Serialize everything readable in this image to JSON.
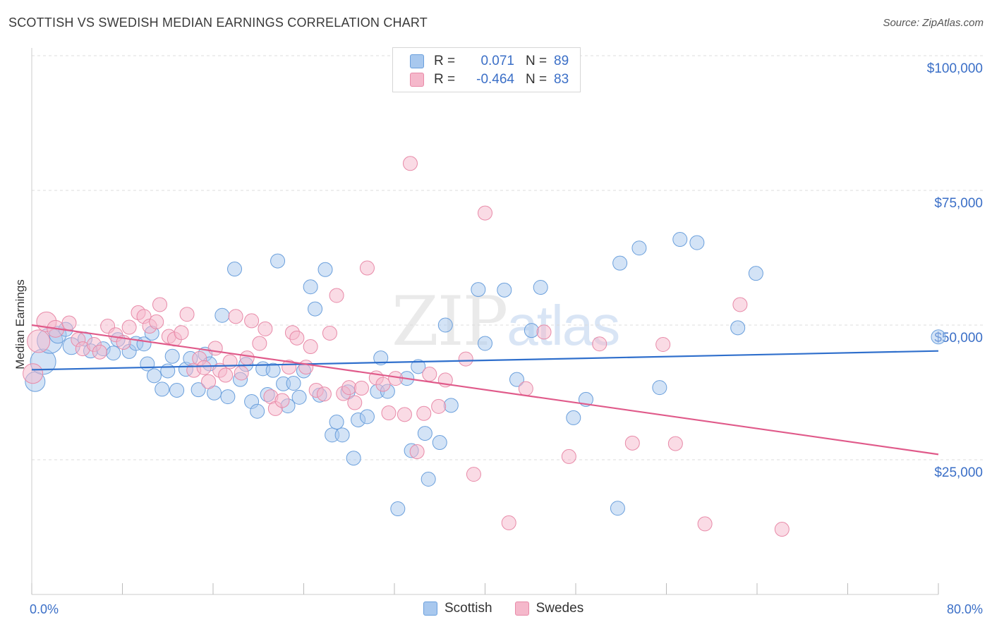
{
  "header": {
    "title": "SCOTTISH VS SWEDISH MEDIAN EARNINGS CORRELATION CHART",
    "source": "Source: ZipAtlas.com"
  },
  "legend": {
    "rows": [
      {
        "r_label": "R =",
        "r_value": "0.071",
        "n_label": "N =",
        "n_value": "89",
        "color": "#a8c8ee"
      },
      {
        "r_label": "R =",
        "r_value": "-0.464",
        "n_label": "N =",
        "n_value": "83",
        "color": "#f5b8cb"
      }
    ]
  },
  "bottom_legend": [
    {
      "label": "Scottish",
      "color": "#a8c8ee"
    },
    {
      "label": "Swedes",
      "color": "#f5b8cb"
    }
  ],
  "watermark": {
    "zip": "ZIP",
    "atlas": "atlas"
  },
  "chart_data": {
    "type": "scatter",
    "title": "SCOTTISH VS SWEDISH MEDIAN EARNINGS CORRELATION CHART",
    "xlabel": "",
    "ylabel": "Median Earnings",
    "xlim": [
      0,
      80
    ],
    "ylim": [
      0,
      102500
    ],
    "x_tick_labels": [
      "0.0%",
      "80.0%"
    ],
    "y_ticks": [
      25000,
      50000,
      75000,
      100000
    ],
    "y_tick_labels": [
      "$25,000",
      "$50,000",
      "$75,000",
      "$100,000"
    ],
    "grid": true,
    "legend_position": "top-center",
    "series": [
      {
        "name": "Scottish",
        "color": "#a8c8ee",
        "stroke": "#6a9fdc",
        "trend": {
          "x": [
            0,
            80
          ],
          "y": [
            41700,
            45200
          ],
          "color": "#2f6fcc"
        },
        "points": [
          [
            0.3,
            39500,
            14
          ],
          [
            1.0,
            43200,
            18
          ],
          [
            1.6,
            47100,
            18
          ],
          [
            2.3,
            48200,
            12
          ],
          [
            3.0,
            49200,
            10
          ],
          [
            3.5,
            46100,
            12
          ],
          [
            4.7,
            47400,
            10
          ],
          [
            5.2,
            45200,
            10
          ],
          [
            6.3,
            45600,
            10
          ],
          [
            7.2,
            44800,
            10
          ],
          [
            7.6,
            47300,
            10
          ],
          [
            8.6,
            45100,
            10
          ],
          [
            9.2,
            46600,
            10
          ],
          [
            9.9,
            46500,
            10
          ],
          [
            10.2,
            42800,
            10
          ],
          [
            10.6,
            48500,
            10
          ],
          [
            10.8,
            40600,
            10
          ],
          [
            11.5,
            38100,
            10
          ],
          [
            12.0,
            41500,
            10
          ],
          [
            12.4,
            44200,
            10
          ],
          [
            12.8,
            37900,
            10
          ],
          [
            13.6,
            41800,
            10
          ],
          [
            14.0,
            43800,
            10
          ],
          [
            14.7,
            38000,
            10
          ],
          [
            15.3,
            44600,
            10
          ],
          [
            15.7,
            42800,
            10
          ],
          [
            16.1,
            37400,
            10
          ],
          [
            16.8,
            51800,
            10
          ],
          [
            17.3,
            36700,
            10
          ],
          [
            17.9,
            60400,
            10
          ],
          [
            18.4,
            39900,
            10
          ],
          [
            18.9,
            42700,
            10
          ],
          [
            19.4,
            35800,
            10
          ],
          [
            19.9,
            34000,
            10
          ],
          [
            20.4,
            41900,
            10
          ],
          [
            20.8,
            37100,
            10
          ],
          [
            21.3,
            41600,
            10
          ],
          [
            21.7,
            61900,
            10
          ],
          [
            22.2,
            39100,
            10
          ],
          [
            22.6,
            35000,
            10
          ],
          [
            23.1,
            39200,
            10
          ],
          [
            23.6,
            36600,
            10
          ],
          [
            24.0,
            41500,
            10
          ],
          [
            24.6,
            57100,
            10
          ],
          [
            25.0,
            53000,
            10
          ],
          [
            25.4,
            37000,
            10
          ],
          [
            25.9,
            60300,
            10
          ],
          [
            26.5,
            29600,
            10
          ],
          [
            26.9,
            32000,
            10
          ],
          [
            27.4,
            29600,
            10
          ],
          [
            27.9,
            37600,
            10
          ],
          [
            28.4,
            25300,
            10
          ],
          [
            28.8,
            32400,
            10
          ],
          [
            29.6,
            33000,
            10
          ],
          [
            30.5,
            37700,
            10
          ],
          [
            30.8,
            43900,
            10
          ],
          [
            31.4,
            37700,
            10
          ],
          [
            32.3,
            15900,
            10
          ],
          [
            33.1,
            40100,
            10
          ],
          [
            33.5,
            26700,
            10
          ],
          [
            34.1,
            42300,
            10
          ],
          [
            34.7,
            29900,
            10
          ],
          [
            35.0,
            21400,
            10
          ],
          [
            36.0,
            28200,
            10
          ],
          [
            36.5,
            50000,
            10
          ],
          [
            37.0,
            35100,
            10
          ],
          [
            39.4,
            56600,
            10
          ],
          [
            40.0,
            46600,
            10
          ],
          [
            41.7,
            56500,
            10
          ],
          [
            42.8,
            39900,
            10
          ],
          [
            44.1,
            49000,
            10
          ],
          [
            44.9,
            57000,
            10
          ],
          [
            47.8,
            32800,
            10
          ],
          [
            48.9,
            36200,
            10
          ],
          [
            51.7,
            16000,
            10
          ],
          [
            51.9,
            61500,
            10
          ],
          [
            53.6,
            64300,
            10
          ],
          [
            55.4,
            38400,
            10
          ],
          [
            57.2,
            65900,
            10
          ],
          [
            58.7,
            65300,
            10
          ],
          [
            62.3,
            49500,
            10
          ],
          [
            63.9,
            59600,
            10
          ],
          [
            80.0,
            47800,
            10
          ]
        ]
      },
      {
        "name": "Swedes",
        "color": "#f5b8cb",
        "stroke": "#e88aa8",
        "trend": {
          "x": [
            0,
            80
          ],
          "y": [
            50000,
            26000
          ],
          "color": "#e05a8a"
        },
        "points": [
          [
            0.1,
            41000,
            14
          ],
          [
            0.6,
            47000,
            16
          ],
          [
            1.3,
            50600,
            14
          ],
          [
            2.1,
            49300,
            12
          ],
          [
            3.3,
            50400,
            10
          ],
          [
            4.1,
            47300,
            10
          ],
          [
            4.5,
            45600,
            10
          ],
          [
            5.5,
            46400,
            10
          ],
          [
            6.0,
            45000,
            10
          ],
          [
            6.7,
            49800,
            10
          ],
          [
            7.4,
            48200,
            10
          ],
          [
            8.1,
            46800,
            10
          ],
          [
            8.6,
            49600,
            10
          ],
          [
            9.4,
            52300,
            10
          ],
          [
            9.9,
            51600,
            10
          ],
          [
            10.4,
            49800,
            10
          ],
          [
            11.0,
            50600,
            10
          ],
          [
            11.3,
            53800,
            10
          ],
          [
            12.1,
            47900,
            10
          ],
          [
            12.6,
            47400,
            10
          ],
          [
            13.2,
            48600,
            10
          ],
          [
            13.7,
            52000,
            10
          ],
          [
            14.3,
            41600,
            10
          ],
          [
            14.8,
            43800,
            10
          ],
          [
            15.2,
            42100,
            10
          ],
          [
            15.6,
            39500,
            10
          ],
          [
            16.2,
            45700,
            10
          ],
          [
            16.6,
            41600,
            10
          ],
          [
            17.1,
            40700,
            10
          ],
          [
            17.5,
            43200,
            10
          ],
          [
            18.0,
            51600,
            10
          ],
          [
            18.5,
            41100,
            10
          ],
          [
            19.0,
            43900,
            10
          ],
          [
            19.4,
            50800,
            10
          ],
          [
            20.1,
            46600,
            10
          ],
          [
            20.6,
            49300,
            10
          ],
          [
            21.1,
            36700,
            10
          ],
          [
            21.5,
            34500,
            10
          ],
          [
            22.1,
            36000,
            10
          ],
          [
            22.7,
            42200,
            10
          ],
          [
            23.0,
            48600,
            10
          ],
          [
            23.4,
            47600,
            10
          ],
          [
            24.2,
            42200,
            10
          ],
          [
            24.6,
            46000,
            10
          ],
          [
            25.1,
            37900,
            10
          ],
          [
            25.8,
            37200,
            10
          ],
          [
            26.3,
            48500,
            10
          ],
          [
            26.9,
            55500,
            10
          ],
          [
            27.5,
            37300,
            10
          ],
          [
            28.0,
            38400,
            10
          ],
          [
            28.5,
            35600,
            10
          ],
          [
            29.1,
            38300,
            10
          ],
          [
            29.6,
            60600,
            10
          ],
          [
            30.4,
            40200,
            10
          ],
          [
            31.0,
            39000,
            10
          ],
          [
            31.5,
            33700,
            10
          ],
          [
            32.1,
            40100,
            10
          ],
          [
            32.9,
            33400,
            10
          ],
          [
            33.4,
            80000,
            10
          ],
          [
            34.0,
            26500,
            10
          ],
          [
            34.6,
            33600,
            10
          ],
          [
            35.1,
            40900,
            10
          ],
          [
            35.9,
            34900,
            10
          ],
          [
            36.5,
            39800,
            10
          ],
          [
            38.3,
            43700,
            10
          ],
          [
            39.0,
            22300,
            10
          ],
          [
            40.0,
            70800,
            10
          ],
          [
            42.1,
            13300,
            10
          ],
          [
            43.6,
            38200,
            10
          ],
          [
            45.2,
            48700,
            10
          ],
          [
            47.4,
            25600,
            10
          ],
          [
            50.1,
            46500,
            10
          ],
          [
            53.0,
            28100,
            10
          ],
          [
            55.7,
            46400,
            10
          ],
          [
            56.8,
            28000,
            10
          ],
          [
            59.4,
            13100,
            10
          ],
          [
            62.5,
            53800,
            10
          ],
          [
            66.2,
            12100,
            10
          ]
        ]
      }
    ]
  }
}
